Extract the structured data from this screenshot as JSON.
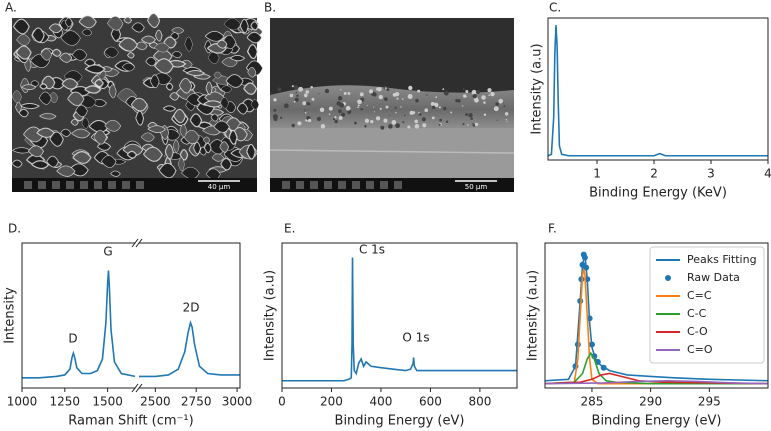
{
  "panels": [
    {
      "label": "A.",
      "scale_bar": "40 µm"
    },
    {
      "label": "B.",
      "scale_bar": "50 µm"
    }
  ],
  "chart_data": [
    {
      "type": "line",
      "label": "C.",
      "xlabel": "Binding Energy (KeV)",
      "ylabel": "Intensity (a.u)",
      "xlim": [
        0.14,
        4
      ],
      "xticks": [
        1,
        2,
        3,
        4
      ],
      "ylim": [
        0,
        1
      ],
      "series": [
        {
          "color": "#1f77b4",
          "x": [
            0.14,
            0.2,
            0.24,
            0.26,
            0.28,
            0.3,
            0.32,
            0.34,
            0.38,
            0.5,
            1,
            1.5,
            2.0,
            2.1,
            2.2,
            2.5,
            3,
            3.5,
            4
          ],
          "values": [
            0.03,
            0.04,
            0.3,
            0.75,
            0.95,
            0.8,
            0.4,
            0.1,
            0.04,
            0.03,
            0.03,
            0.03,
            0.03,
            0.045,
            0.03,
            0.03,
            0.03,
            0.03,
            0.03
          ]
        }
      ]
    },
    {
      "type": "line",
      "label": "D.",
      "xlabel": "Raman Shift (cm⁻¹)",
      "ylabel": "Intensity",
      "ylim": [
        0,
        1
      ],
      "segments": [
        {
          "xlim": [
            1000,
            1660
          ],
          "xticks": [
            1000,
            1250,
            1500
          ]
        },
        {
          "xlim": [
            2400,
            3018
          ],
          "xticks": [
            2500,
            2750,
            3000
          ]
        }
      ],
      "annotations": [
        "D",
        "G",
        "2D"
      ],
      "series": [
        {
          "color": "#1f77b4",
          "segment": 0,
          "x": [
            1000,
            1100,
            1200,
            1250,
            1280,
            1292,
            1300,
            1308,
            1320,
            1350,
            1400,
            1440,
            1470,
            1490,
            1500,
            1505,
            1510,
            1520,
            1540,
            1580,
            1660
          ],
          "values": [
            0.07,
            0.07,
            0.08,
            0.09,
            0.13,
            0.21,
            0.24,
            0.21,
            0.14,
            0.1,
            0.1,
            0.12,
            0.2,
            0.45,
            0.72,
            0.81,
            0.7,
            0.4,
            0.18,
            0.1,
            0.08
          ]
        },
        {
          "color": "#1f77b4",
          "segment": 1,
          "x": [
            2400,
            2500,
            2580,
            2640,
            2680,
            2700,
            2715,
            2725,
            2740,
            2770,
            2820,
            2900,
            3000,
            3018
          ],
          "values": [
            0.08,
            0.08,
            0.09,
            0.13,
            0.25,
            0.38,
            0.45,
            0.42,
            0.3,
            0.15,
            0.1,
            0.09,
            0.09,
            0.09
          ]
        }
      ]
    },
    {
      "type": "line",
      "label": "E.",
      "xlabel": "Binding Energy (eV)",
      "ylabel": "Intensity (a.u)",
      "xlim": [
        0,
        950
      ],
      "xticks": [
        0,
        200,
        400,
        600,
        800
      ],
      "ylim": [
        0,
        1
      ],
      "annotations": [
        "C 1s",
        "O 1s"
      ],
      "series": [
        {
          "color": "#1f77b4",
          "x": [
            0,
            100,
            200,
            250,
            270,
            280,
            283,
            285,
            288,
            292,
            300,
            310,
            320,
            330,
            340,
            360,
            400,
            450,
            500,
            520,
            530,
            532,
            535,
            545,
            600,
            700,
            800,
            900,
            950
          ],
          "values": [
            0.05,
            0.05,
            0.05,
            0.05,
            0.06,
            0.07,
            0.3,
            0.9,
            0.3,
            0.12,
            0.1,
            0.17,
            0.2,
            0.15,
            0.18,
            0.15,
            0.14,
            0.13,
            0.12,
            0.13,
            0.17,
            0.21,
            0.15,
            0.12,
            0.12,
            0.12,
            0.12,
            0.12,
            0.12
          ]
        }
      ]
    },
    {
      "type": "line",
      "label": "F.",
      "xlabel": "Binding Energy (eV)",
      "ylabel": "Intensity (a.u)",
      "xlim": [
        281,
        300
      ],
      "xticks": [
        285,
        290,
        295
      ],
      "ylim": [
        0,
        1
      ],
      "legend": "upper right",
      "series": [
        {
          "name": "Peaks Fitting",
          "color": "#1f77b4",
          "mode": "line",
          "x": [
            281,
            283,
            283.6,
            284,
            284.2,
            284.4,
            284.6,
            284.8,
            285,
            285.3,
            285.7,
            286.5,
            288,
            290,
            292,
            295,
            300
          ],
          "values": [
            0.05,
            0.06,
            0.15,
            0.6,
            0.85,
            0.92,
            0.75,
            0.45,
            0.28,
            0.2,
            0.16,
            0.12,
            0.09,
            0.08,
            0.07,
            0.06,
            0.05
          ]
        },
        {
          "name": "Raw Data",
          "color": "#1f77b4",
          "mode": "markers",
          "x": [
            283.6,
            283.8,
            284,
            284.1,
            284.2,
            284.3,
            284.4,
            284.5,
            284.6,
            284.8,
            285,
            285.2,
            285.5,
            286
          ],
          "values": [
            0.15,
            0.3,
            0.6,
            0.75,
            0.85,
            0.92,
            0.9,
            0.83,
            0.75,
            0.48,
            0.3,
            0.22,
            0.18,
            0.14
          ]
        },
        {
          "name": "C=C",
          "color": "#ff7f0e",
          "mode": "line",
          "x": [
            281,
            283.5,
            283.8,
            284,
            284.2,
            284.3,
            284.4,
            284.6,
            284.8,
            285,
            285.5,
            287,
            300
          ],
          "values": [
            0.03,
            0.04,
            0.2,
            0.5,
            0.78,
            0.82,
            0.78,
            0.5,
            0.2,
            0.06,
            0.03,
            0.03,
            0.03
          ]
        },
        {
          "name": "C-C",
          "color": "#2ca02c",
          "mode": "line",
          "x": [
            281,
            283.5,
            284.2,
            284.6,
            284.9,
            285.2,
            285.6,
            286.2,
            287,
            290,
            300
          ],
          "values": [
            0.03,
            0.04,
            0.1,
            0.2,
            0.24,
            0.2,
            0.1,
            0.05,
            0.04,
            0.03,
            0.03
          ]
        },
        {
          "name": "C-O",
          "color": "#d62728",
          "mode": "line",
          "x": [
            281,
            284,
            285,
            285.8,
            286.5,
            287.5,
            289,
            291,
            300
          ],
          "values": [
            0.03,
            0.04,
            0.06,
            0.09,
            0.1,
            0.08,
            0.05,
            0.04,
            0.03
          ]
        },
        {
          "name": "C=O",
          "color": "#9467bd",
          "mode": "line",
          "x": [
            281,
            286,
            289,
            291.5,
            294,
            297,
            300
          ],
          "values": [
            0.03,
            0.035,
            0.045,
            0.05,
            0.045,
            0.035,
            0.03
          ]
        }
      ]
    }
  ]
}
